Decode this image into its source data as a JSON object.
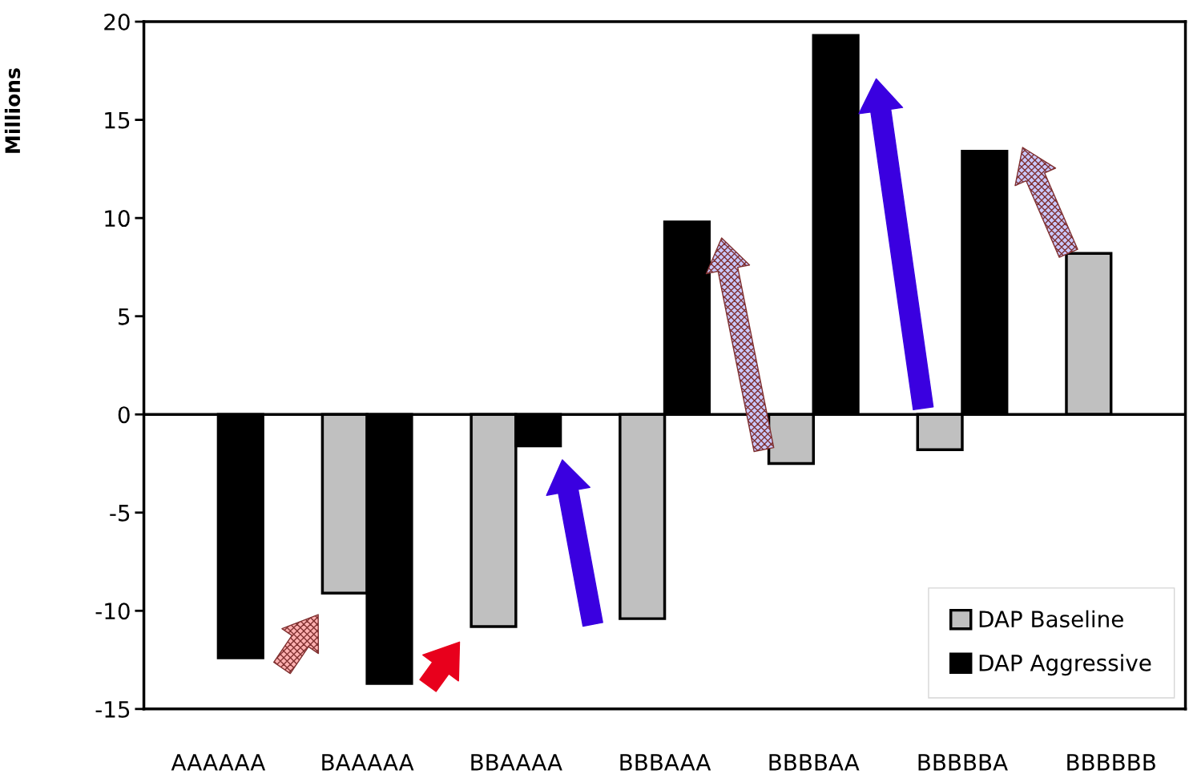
{
  "chart_data": {
    "type": "bar",
    "ylabel": "Millions",
    "categories": [
      "AAAAAA",
      "BAAAAA",
      "BBAAAA",
      "BBBAAA",
      "BBBBAA",
      "BBBBBA",
      "BBBBBB"
    ],
    "series": [
      {
        "name": "DAP Baseline",
        "color": "#c0c0c0",
        "values": [
          null,
          -9.1,
          -10.8,
          -10.4,
          -2.5,
          -1.8,
          8.2
        ]
      },
      {
        "name": "DAP Aggressive",
        "color": "#000000",
        "values": [
          -12.4,
          -13.7,
          -1.6,
          9.8,
          19.3,
          13.4,
          null
        ]
      }
    ],
    "ylim": [
      -15,
      20
    ],
    "yticks": [
      -15,
      -10,
      -5,
      0,
      5,
      10,
      15,
      20
    ],
    "ref_lines": [
      {
        "axis": "y",
        "value": 0,
        "color": "#000000"
      }
    ],
    "legend": "lower right",
    "grid": false
  }
}
